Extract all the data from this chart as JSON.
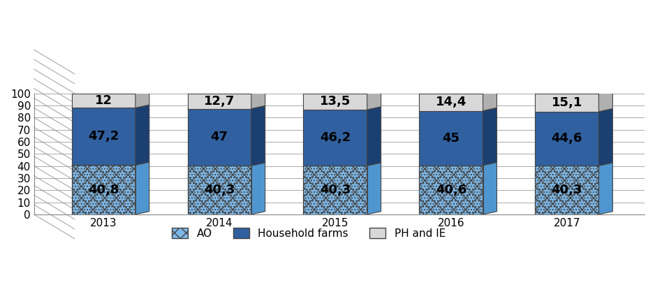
{
  "years": [
    "2013",
    "2014",
    "2015",
    "2016",
    "2017"
  ],
  "ao_values": [
    40.8,
    40.3,
    40.3,
    40.6,
    40.3
  ],
  "household_values": [
    47.2,
    47.0,
    46.2,
    45.0,
    44.6
  ],
  "ph_values": [
    12.0,
    12.7,
    13.5,
    14.4,
    15.1
  ],
  "ao_color": "#7db8e8",
  "ao_color2": "#4f96d0",
  "household_color": "#3060a0",
  "household_color2": "#1a3f70",
  "ph_color": "#d8d8d8",
  "ph_color2": "#b0b0b0",
  "ylim": [
    0,
    100
  ],
  "yticks": [
    0,
    10,
    20,
    30,
    40,
    50,
    60,
    70,
    80,
    90,
    100
  ],
  "bar_width": 0.55,
  "depth": 0.12,
  "legend_labels": [
    "AO",
    "Household farms",
    "PH and IE"
  ],
  "label_fontsize": 13,
  "tick_fontsize": 11,
  "legend_fontsize": 11,
  "ao_label_color": "black",
  "hh_label_color": "black",
  "ph_label_color": "black"
}
